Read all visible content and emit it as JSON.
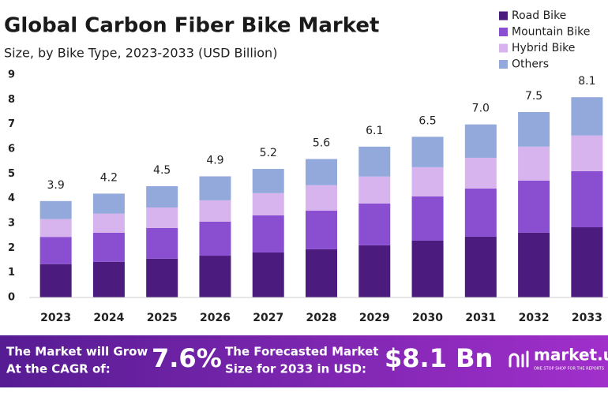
{
  "chart_data": {
    "type": "stacked_bar",
    "title": "Global Carbon Fiber Bike Market",
    "subtitle": "Size, by Bike Type, 2023-2033 (USD Billion)",
    "categories": [
      "2023",
      "2024",
      "2025",
      "2026",
      "2027",
      "2028",
      "2029",
      "2030",
      "2031",
      "2032",
      "2033"
    ],
    "series": [
      {
        "name": "Road Bike",
        "color": "#4b1b7d",
        "values": [
          1.35,
          1.44,
          1.57,
          1.69,
          1.82,
          1.95,
          2.11,
          2.3,
          2.46,
          2.62,
          2.84
        ]
      },
      {
        "name": "Mountain Bike",
        "color": "#8a4fd0",
        "values": [
          1.1,
          1.18,
          1.24,
          1.38,
          1.5,
          1.56,
          1.69,
          1.79,
          1.95,
          2.11,
          2.27
        ]
      },
      {
        "name": "Hybrid Bike",
        "color": "#d8b4ef",
        "values": [
          0.72,
          0.77,
          0.83,
          0.86,
          0.9,
          1.03,
          1.09,
          1.18,
          1.24,
          1.37,
          1.44
        ]
      },
      {
        "name": "Others",
        "color": "#93a9dc",
        "values": [
          0.73,
          0.81,
          0.86,
          0.97,
          0.98,
          1.06,
          1.21,
          1.23,
          1.35,
          1.4,
          1.55
        ]
      }
    ],
    "totals": {
      "values": [
        3.9,
        4.2,
        4.5,
        4.9,
        5.2,
        5.6,
        6.1,
        6.5,
        7.0,
        7.5,
        8.1
      ],
      "value_labels": [
        "3.9",
        "4.2",
        "4.5",
        "4.9",
        "5.2",
        "5.6",
        "6.1",
        "6.5",
        "7.0",
        "7.5",
        "8.1"
      ]
    },
    "ylim": [
      0,
      9
    ],
    "yticks": [
      0,
      1,
      2,
      3,
      4,
      5,
      6,
      7,
      8,
      9
    ],
    "grid": false,
    "legend": "top-right"
  },
  "banner": {
    "cagr_text": [
      "The Market will Grow",
      "At the CAGR of:"
    ],
    "cagr": "7.6%",
    "forecast_text": [
      "The Forecasted Market",
      "Size for 2033 in USD:"
    ],
    "forecast": "$8.1 Bn",
    "brand": "market.us",
    "tagline": "ONE STOP SHOP FOR THE REPORTS"
  }
}
